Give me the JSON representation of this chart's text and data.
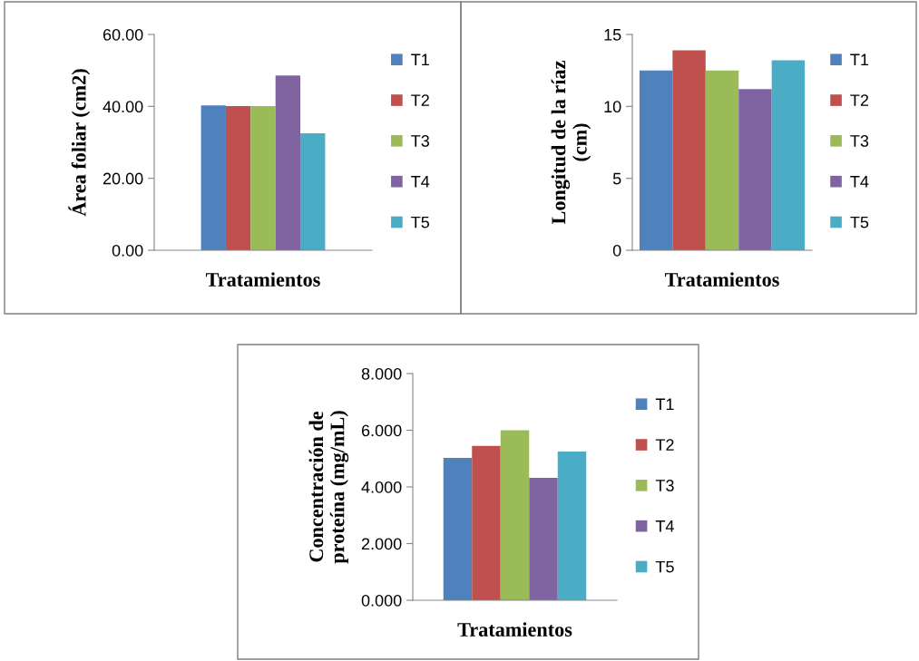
{
  "chart_data": [
    {
      "type": "bar",
      "xlabel": "Tratamientos",
      "ylabel": "Área foliar (cm2)",
      "categories": [
        null
      ],
      "legend": "right",
      "ylim": [
        0,
        60
      ],
      "yticks": [
        {
          "value": 0,
          "label": "0.00"
        },
        {
          "value": 20,
          "label": "20.00"
        },
        {
          "value": 40,
          "label": "40.00"
        },
        {
          "value": 60,
          "label": "60.00"
        }
      ],
      "series": [
        {
          "name": "T1",
          "color": "#4f81bd",
          "values": [
            40.3
          ]
        },
        {
          "name": "T2",
          "color": "#c0504d",
          "values": [
            40.1
          ]
        },
        {
          "name": "T3",
          "color": "#9bbb59",
          "values": [
            40.1
          ]
        },
        {
          "name": "T4",
          "color": "#8064a2",
          "values": [
            48.6
          ]
        },
        {
          "name": "T5",
          "color": "#4bacc6",
          "values": [
            32.5
          ]
        }
      ]
    },
    {
      "type": "bar",
      "xlabel": "Tratamientos",
      "ylabel": "Longitud de la ríaz\n(cm)",
      "categories": [
        null
      ],
      "legend": "right",
      "ylim": [
        0,
        15
      ],
      "yticks": [
        0,
        5,
        10,
        15
      ],
      "series": [
        {
          "name": "T1",
          "color": "#4f81bd",
          "values": [
            12.5
          ]
        },
        {
          "name": "T2",
          "color": "#c0504d",
          "values": [
            13.9
          ]
        },
        {
          "name": "T3",
          "color": "#9bbb59",
          "values": [
            12.5
          ]
        },
        {
          "name": "T4",
          "color": "#8064a2",
          "values": [
            11.2
          ]
        },
        {
          "name": "T5",
          "color": "#4bacc6",
          "values": [
            13.2
          ]
        }
      ]
    },
    {
      "type": "bar",
      "xlabel": "Tratamientos",
      "ylabel": "Concentración de\nproteína (mg/mL)",
      "categories": [
        null
      ],
      "legend": "right",
      "ylim": [
        0,
        8
      ],
      "yticks": [
        {
          "value": 0,
          "label": "0.000"
        },
        {
          "value": 2,
          "label": "2.000"
        },
        {
          "value": 4,
          "label": "4.000"
        },
        {
          "value": 6,
          "label": "6.000"
        },
        {
          "value": 8,
          "label": "8.000"
        }
      ],
      "series": [
        {
          "name": "T1",
          "color": "#4f81bd",
          "values": [
            5.02
          ]
        },
        {
          "name": "T2",
          "color": "#c0504d",
          "values": [
            5.45
          ]
        },
        {
          "name": "T3",
          "color": "#9bbb59",
          "values": [
            6.0
          ]
        },
        {
          "name": "T4",
          "color": "#8064a2",
          "values": [
            4.32
          ]
        },
        {
          "name": "T5",
          "color": "#4bacc6",
          "values": [
            5.25
          ]
        }
      ]
    }
  ]
}
